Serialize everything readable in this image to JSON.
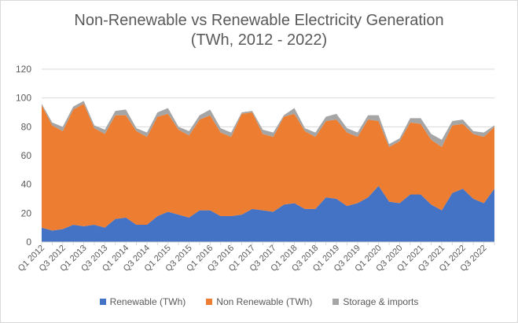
{
  "chart_data": {
    "type": "area",
    "stacked": true,
    "title": "Non-Renewable vs Renewable Electricity Generation",
    "subtitle": "(TWh, 2012 - 2022)",
    "xlabel": "",
    "ylabel": "",
    "ylim": [
      0,
      120
    ],
    "yticks": [
      0,
      20,
      40,
      60,
      80,
      100,
      120
    ],
    "grid": true,
    "legend_position": "bottom",
    "categories": [
      "Q1 2012",
      "Q2 2012",
      "Q3 2012",
      "Q4 2012",
      "Q1 2013",
      "Q2 2013",
      "Q3 2013",
      "Q4 2013",
      "Q1 2014",
      "Q2 2014",
      "Q3 2014",
      "Q4 2014",
      "Q1 2015",
      "Q2 2015",
      "Q3 2015",
      "Q4 2015",
      "Q1 2016",
      "Q2 2016",
      "Q3 2016",
      "Q4 2016",
      "Q1 2017",
      "Q2 2017",
      "Q3 2017",
      "Q4 2017",
      "Q1 2018",
      "Q2 2018",
      "Q3 2018",
      "Q4 2018",
      "Q1 2019",
      "Q2 2019",
      "Q3 2019",
      "Q4 2019",
      "Q1 2020",
      "Q2 2020",
      "Q3 2020",
      "Q4 2020",
      "Q1 2021",
      "Q2 2021",
      "Q3 2021",
      "Q4 2021",
      "Q1 2022",
      "Q2 2022",
      "Q3 2022",
      "Q4 2022"
    ],
    "tick_labels": [
      "Q1 2012",
      "Q3 2012",
      "Q1 2013",
      "Q3 2013",
      "Q1 2014",
      "Q3 2014",
      "Q1 2015",
      "Q3 2015",
      "Q1 2016",
      "Q3 2016",
      "Q1 2017",
      "Q3 2017",
      "Q1 2018",
      "Q3 2018",
      "Q1 2019",
      "Q3 2019",
      "Q1 2020",
      "Q3 2020",
      "Q1 2021",
      "Q3 2021",
      "Q1 2022",
      "Q3 2022"
    ],
    "series": [
      {
        "name": "Renewable (TWh)",
        "color": "#4472c4",
        "values": [
          10,
          8,
          9,
          12,
          11,
          12,
          10,
          16,
          17,
          12,
          12,
          18,
          21,
          19,
          17,
          22,
          22,
          18,
          18,
          19,
          23,
          22,
          21,
          26,
          27,
          23,
          23,
          31,
          30,
          25,
          27,
          31,
          39,
          28,
          27,
          33,
          33,
          26,
          22,
          34,
          37,
          30,
          27,
          37
        ]
      },
      {
        "name": "Non Renewable (TWh)",
        "color": "#ed7d31",
        "values": [
          85,
          73,
          68,
          80,
          85,
          67,
          65,
          72,
          71,
          65,
          61,
          69,
          68,
          59,
          57,
          63,
          66,
          58,
          55,
          70,
          67,
          53,
          52,
          61,
          62,
          54,
          50,
          53,
          55,
          51,
          46,
          54,
          45,
          38,
          43,
          50,
          49,
          45,
          44,
          47,
          45,
          45,
          46,
          43
        ]
      },
      {
        "name": "Storage & imports",
        "color": "#a5a5a5",
        "values": [
          1,
          2,
          3,
          2,
          2,
          2,
          3,
          3,
          4,
          2,
          3,
          3,
          4,
          2,
          3,
          3,
          4,
          3,
          3,
          1,
          1,
          3,
          3,
          1,
          4,
          2,
          3,
          3,
          4,
          3,
          3,
          3,
          4,
          2,
          2,
          3,
          4,
          4,
          5,
          3,
          3,
          2,
          3,
          1
        ]
      }
    ]
  }
}
